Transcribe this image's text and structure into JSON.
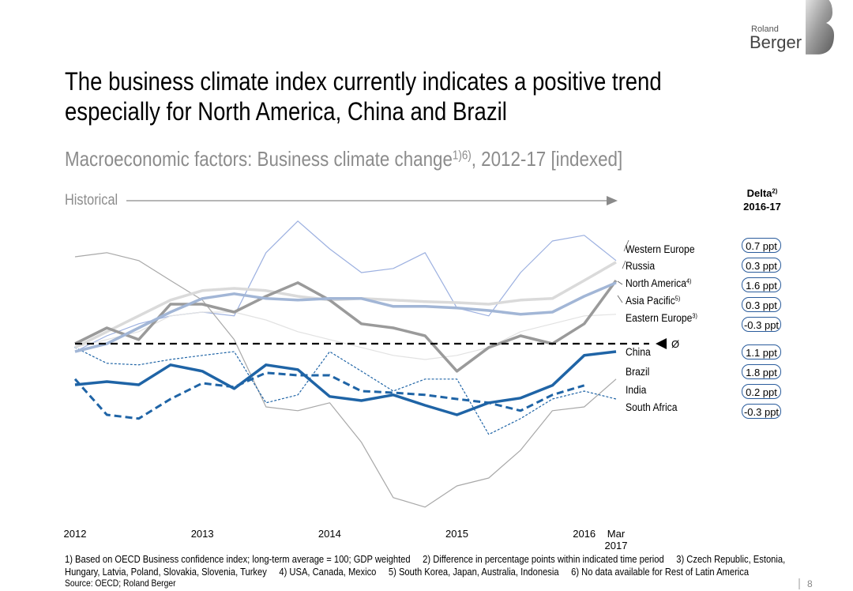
{
  "brand": {
    "line1": "Roland",
    "line2": "Berger"
  },
  "title_lines": [
    "The business climate index currently indicates a positive trend",
    "especially for North America, China and Brazil"
  ],
  "subtitle": "Macroeconomic factors: Business climate change",
  "subtitle_note": "1)6)",
  "subtitle_end": ", 2012-17 [indexed]",
  "chart_data": {
    "type": "line",
    "period_label": "Historical",
    "categories": [
      "2012",
      null,
      null,
      null,
      "2013",
      null,
      null,
      null,
      "2014",
      null,
      null,
      null,
      "2015",
      null,
      null,
      null,
      "2016",
      "Mar 2017"
    ],
    "ylim": [
      94,
      105
    ],
    "average_line": 100,
    "average_label": "Ø",
    "series": [
      {
        "name": "Western Europe",
        "note": "",
        "color": "#dadada",
        "line_width": 3.5,
        "dash": "solid",
        "values": [
          99.88,
          100.38,
          100.88,
          101.38,
          101.68,
          101.75,
          101.68,
          101.5,
          101.38,
          101.43,
          101.38,
          101.33,
          101.3,
          101.25,
          101.38,
          101.43,
          102.0,
          102.58
        ]
      },
      {
        "name": "Russia",
        "note": "",
        "color": "#9cb0e0",
        "line_width": 1.2,
        "dash": "solid",
        "values": [
          99.75,
          100.25,
          100.63,
          100.88,
          101.0,
          100.88,
          102.88,
          103.88,
          103.0,
          102.25,
          102.38,
          102.88,
          101.13,
          100.88,
          102.25,
          103.25,
          103.43,
          102.63
        ]
      },
      {
        "name": "North America",
        "note": "4)",
        "color": "#9a9a9a",
        "line_width": 3.5,
        "dash": "solid",
        "values": [
          100,
          100.5,
          100.13,
          101.25,
          101.25,
          101.0,
          101.5,
          101.93,
          101.38,
          100.63,
          100.5,
          100.25,
          99.13,
          99.88,
          100.25,
          100,
          100.63,
          102
        ]
      },
      {
        "name": "Asia Pacific",
        "note": "5)",
        "color": "#a2b6d6",
        "line_width": 3.5,
        "dash": "solid",
        "values": [
          99.75,
          100,
          100.5,
          101,
          101.43,
          101.58,
          101.43,
          101.38,
          101.43,
          101.43,
          101.18,
          101.18,
          101.13,
          101.05,
          100.93,
          101,
          101.5,
          101.93
        ]
      },
      {
        "name": "Eastern Europe",
        "note": "3)",
        "color": "#e2e2e2",
        "line_width": 1.2,
        "dash": "solid",
        "values": [
          99.88,
          100.13,
          100.38,
          100.88,
          101,
          101,
          100.75,
          100.38,
          100.13,
          99.88,
          99.63,
          99.5,
          99.63,
          99.88,
          100.38,
          100.63,
          100.88,
          100.93
        ]
      },
      {
        "name": "China",
        "note": "",
        "color": "#1f64a6",
        "line_width": 3.5,
        "dash": "solid",
        "values": [
          98.7,
          98.8,
          98.7,
          99.33,
          99.13,
          98.58,
          99.33,
          99.18,
          98.33,
          98.2,
          98.38,
          98.05,
          97.75,
          98.13,
          98.28,
          98.68,
          99.63,
          99.75
        ]
      },
      {
        "name": "Brazil",
        "note": "",
        "color": "#a8a8a8",
        "line_width": 1.2,
        "dash": "solid",
        "values": [
          102.75,
          102.88,
          102.63,
          102,
          101.38,
          100.13,
          98.0,
          97.88,
          98.13,
          96.88,
          95.13,
          94.83,
          95.5,
          95.75,
          96.63,
          97.88,
          98.0,
          98.88
        ]
      },
      {
        "name": "India",
        "note": "",
        "color": "#1f64a6",
        "line_width": 3,
        "dash": "dashed",
        "values": [
          98.88,
          97.75,
          97.63,
          98.25,
          98.75,
          98.63,
          99.08,
          99.0,
          99.0,
          98.5,
          98.45,
          98.38,
          98.25,
          98.13,
          97.88,
          98.38,
          98.68,
          null
        ]
      },
      {
        "name": "South Africa",
        "note": "",
        "color": "#1f64a6",
        "line_width": 1.2,
        "dash": "dotted",
        "values": [
          99.88,
          99.38,
          99.33,
          99.5,
          99.63,
          99.75,
          98.13,
          98.38,
          99.75,
          99.13,
          98.5,
          98.88,
          98.88,
          97.13,
          97.63,
          98.25,
          98.5,
          98.25
        ]
      }
    ],
    "delta": {
      "title": "Delta",
      "title_note": "2)",
      "period": "2016-17",
      "values": [
        0.7,
        0.3,
        1.6,
        0.3,
        -0.3,
        1.1,
        1.8,
        0.2,
        -0.3
      ],
      "value_labels": [
        "0.7 ppt",
        "0.3 ppt",
        "1.6 ppt",
        "0.3 ppt",
        "-0.3 ppt",
        "1.1 ppt",
        "1.8 ppt",
        "0.2 ppt",
        "-0.3 ppt"
      ]
    }
  },
  "footnotes": [
    "1) Based on OECD Business confidence index; long-term average = 100; GDP weighted     2) Difference in percentage points within indicated time period     3) Czech Republic, Estonia,",
    "Hungary, Latvia, Poland, Slovakia, Slovenia, Turkey     4) USA, Canada, Mexico     5) South Korea, Japan, Australia, Indonesia     6) No data available for Rest of Latin America"
  ],
  "source": "Source: OECD; Roland Berger",
  "page_number": "8"
}
